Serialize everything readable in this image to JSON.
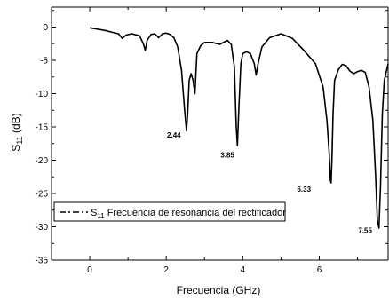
{
  "chart_data": {
    "type": "line",
    "xlabel": "Frecuencia (GHz)",
    "ylabel_main": "S",
    "ylabel_sub": "11",
    "ylabel_unit": " (dB)",
    "xlim": [
      -1,
      7.8
    ],
    "ylim": [
      -35,
      3
    ],
    "xticks": [
      0,
      2,
      4,
      6
    ],
    "yticks": [
      0,
      -5,
      -10,
      -15,
      -20,
      -25,
      -30,
      -35
    ],
    "legend": {
      "position": "lower-left",
      "prefix": "S",
      "sub": "11",
      "text": " Frecuencia de resonancia del rectificador"
    },
    "annotations": [
      {
        "text": "2.44",
        "x": 2.2,
        "y": -16.6
      },
      {
        "text": "3.85",
        "x": 3.6,
        "y": -19.6
      },
      {
        "text": "6.33",
        "x": 5.6,
        "y": -24.7
      },
      {
        "text": "7.55",
        "x": 7.2,
        "y": -30.9
      }
    ],
    "series": [
      {
        "style": "solid",
        "x": [
          0,
          0.2,
          0.4,
          0.6,
          0.75,
          0.85,
          0.95,
          1.1,
          1.3,
          1.4,
          1.45,
          1.5,
          1.6,
          1.7,
          1.8,
          1.9,
          2.0,
          2.1,
          2.2,
          2.3,
          2.4,
          2.48,
          2.53,
          2.56,
          2.6,
          2.65,
          2.7,
          2.75,
          2.8,
          2.9,
          3.0,
          3.2,
          3.4,
          3.6,
          3.7,
          3.78,
          3.83,
          3.86,
          3.9,
          3.95,
          4.0,
          4.1,
          4.2,
          4.3,
          4.35,
          4.4,
          4.5,
          4.7,
          5.0,
          5.3,
          5.6,
          5.9,
          6.1,
          6.2,
          6.26,
          6.29,
          6.31,
          6.33,
          6.36,
          6.4,
          6.5,
          6.6,
          6.7,
          6.8,
          6.9,
          7.0,
          7.1,
          7.2,
          7.3,
          7.4,
          7.47,
          7.52,
          7.56,
          7.6,
          7.65,
          7.7,
          7.8
        ],
        "y": [
          -0.1,
          -0.3,
          -0.5,
          -0.8,
          -1.0,
          -1.7,
          -1.2,
          -1.0,
          -1.3,
          -2.5,
          -3.5,
          -2.0,
          -1.1,
          -1.0,
          -1.6,
          -1.0,
          -0.9,
          -1.1,
          -1.6,
          -3.0,
          -6.5,
          -12.5,
          -15.6,
          -13.0,
          -8.0,
          -7.0,
          -8.0,
          -10.0,
          -4.0,
          -2.8,
          -2.3,
          -2.3,
          -2.6,
          -2.0,
          -2.6,
          -6.0,
          -15.0,
          -17.8,
          -12.0,
          -5.5,
          -4.0,
          -3.7,
          -4.0,
          -5.5,
          -7.2,
          -5.5,
          -3.0,
          -1.6,
          -1.0,
          -1.7,
          -3.5,
          -5.5,
          -9.0,
          -14.0,
          -19.0,
          -23.0,
          -23.4,
          -20.0,
          -13.0,
          -8.0,
          -6.4,
          -5.6,
          -5.8,
          -6.6,
          -7.0,
          -6.7,
          -6.5,
          -6.8,
          -9.0,
          -14.0,
          -22.0,
          -29.0,
          -30.2,
          -24.0,
          -13.0,
          -8.0,
          -5.5
        ]
      }
    ]
  }
}
